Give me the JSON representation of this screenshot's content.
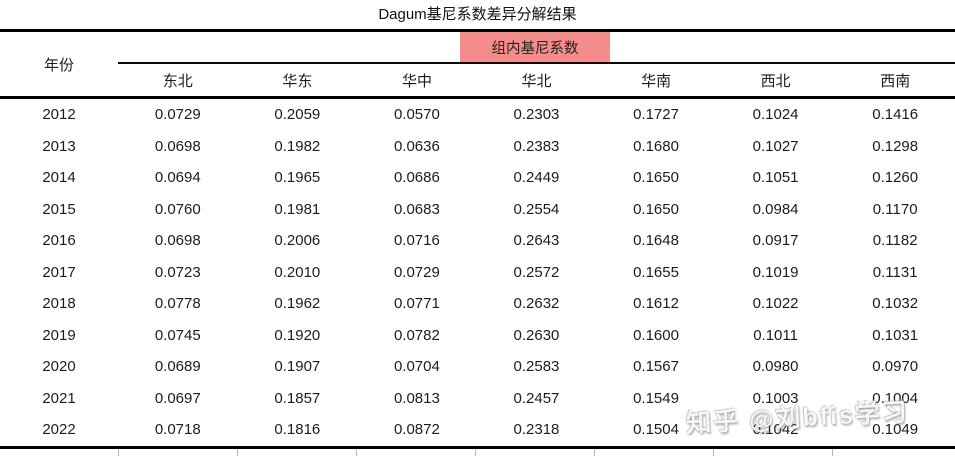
{
  "title": "Dagum基尼系数差异分解结果",
  "header": {
    "year_label": "年份",
    "group_label": "组内基尼系数",
    "regions": [
      "东北",
      "华东",
      "华中",
      "华北",
      "华南",
      "西北",
      "西南"
    ]
  },
  "rows": [
    {
      "year": "2012",
      "values": [
        "0.0729",
        "0.2059",
        "0.0570",
        "0.2303",
        "0.1727",
        "0.1024",
        "0.1416"
      ]
    },
    {
      "year": "2013",
      "values": [
        "0.0698",
        "0.1982",
        "0.0636",
        "0.2383",
        "0.1680",
        "0.1027",
        "0.1298"
      ]
    },
    {
      "year": "2014",
      "values": [
        "0.0694",
        "0.1965",
        "0.0686",
        "0.2449",
        "0.1650",
        "0.1051",
        "0.1260"
      ]
    },
    {
      "year": "2015",
      "values": [
        "0.0760",
        "0.1981",
        "0.0683",
        "0.2554",
        "0.1650",
        "0.0984",
        "0.1170"
      ]
    },
    {
      "year": "2016",
      "values": [
        "0.0698",
        "0.2006",
        "0.0716",
        "0.2643",
        "0.1648",
        "0.0917",
        "0.1182"
      ]
    },
    {
      "year": "2017",
      "values": [
        "0.0723",
        "0.2010",
        "0.0729",
        "0.2572",
        "0.1655",
        "0.1019",
        "0.1131"
      ]
    },
    {
      "year": "2018",
      "values": [
        "0.0778",
        "0.1962",
        "0.0771",
        "0.2632",
        "0.1612",
        "0.1022",
        "0.1032"
      ]
    },
    {
      "year": "2019",
      "values": [
        "0.0745",
        "0.1920",
        "0.0782",
        "0.2630",
        "0.1600",
        "0.1011",
        "0.1031"
      ]
    },
    {
      "year": "2020",
      "values": [
        "0.0689",
        "0.1907",
        "0.0704",
        "0.2583",
        "0.1567",
        "0.0980",
        "0.0970"
      ]
    },
    {
      "year": "2021",
      "values": [
        "0.0697",
        "0.1857",
        "0.0813",
        "0.2457",
        "0.1549",
        "0.1003",
        "0.1004"
      ]
    },
    {
      "year": "2022",
      "values": [
        "0.0718",
        "0.1816",
        "0.0872",
        "0.2318",
        "0.1504",
        "0.1042",
        "0.1049"
      ]
    }
  ],
  "watermark": "知乎 @刘bfis学习",
  "colors": {
    "highlight": "#F48C8C",
    "rule": "#000000",
    "text": "#1c1c1c"
  }
}
